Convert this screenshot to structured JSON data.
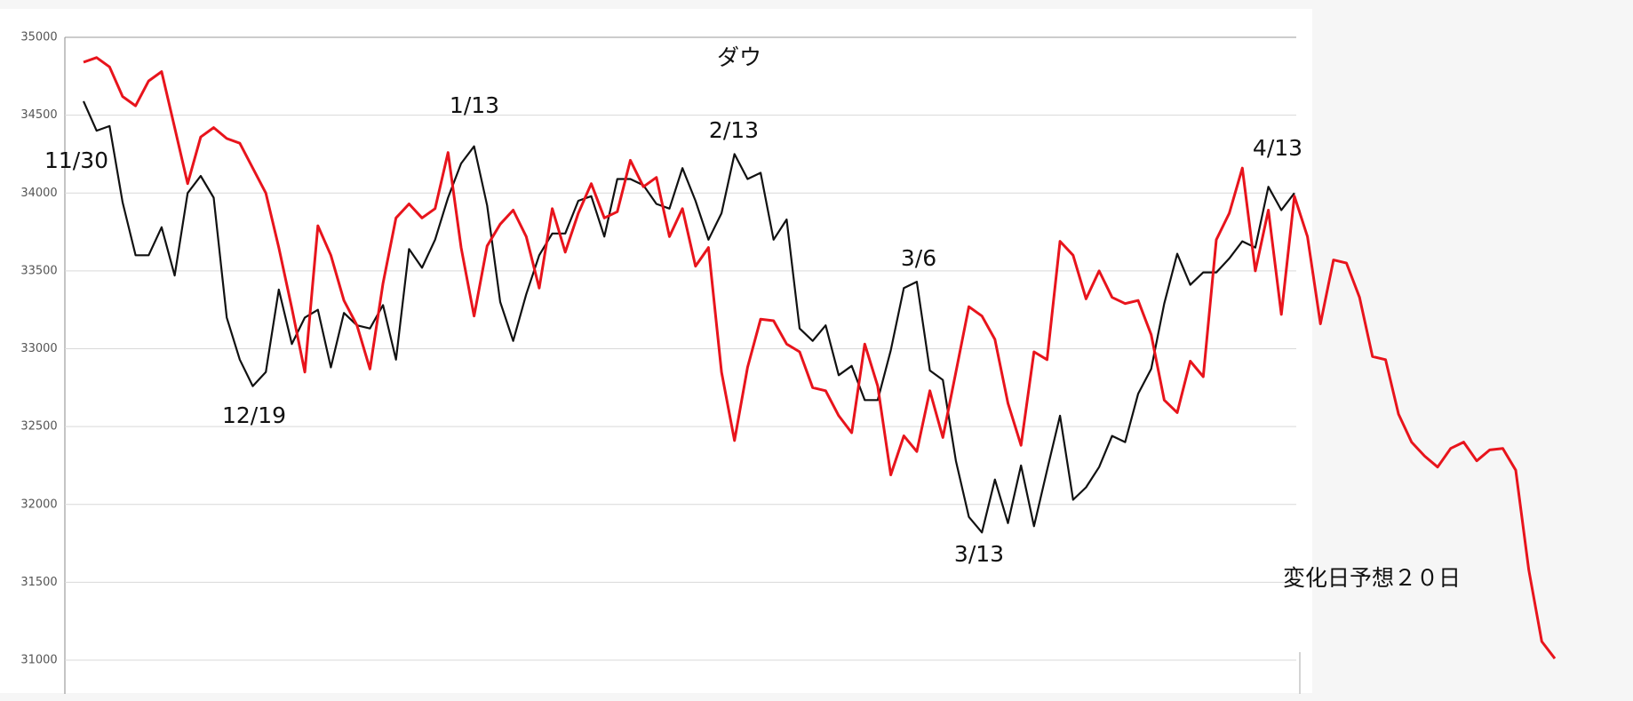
{
  "chart_data": {
    "type": "line",
    "title": "ダウ",
    "annotations": [
      "11/30",
      "12/19",
      "1/13",
      "2/13",
      "3/6",
      "3/13",
      "4/13",
      "変化日予想２０日"
    ],
    "ylim": [
      31000,
      35000
    ],
    "yticks": [
      31000,
      31500,
      32000,
      32500,
      33000,
      33500,
      34000,
      34500,
      35000
    ],
    "grid": true,
    "series": [
      {
        "color": "#111111",
        "values": [
          34590,
          34400,
          34430,
          33940,
          33600,
          33600,
          33780,
          33470,
          34000,
          34110,
          33970,
          33200,
          32930,
          32760,
          32850,
          33380,
          33030,
          33200,
          33250,
          32880,
          33230,
          33150,
          33130,
          33280,
          32930,
          33640,
          33520,
          33700,
          33970,
          34190,
          34300,
          33920,
          33300,
          33050,
          33350,
          33600,
          33740,
          33740,
          33950,
          33980,
          33720,
          34090,
          34090,
          34050,
          33930,
          33900,
          34160,
          33950,
          33700,
          33870,
          34250,
          34090,
          34130,
          33700,
          33830,
          33130,
          33050,
          33150,
          32830,
          32890,
          32670,
          32670,
          32990,
          33390,
          33430,
          32860,
          32800,
          32280,
          31920,
          31820,
          32160,
          31880,
          32250,
          31860,
          32220,
          32570,
          32030,
          32110,
          32240,
          32440,
          32400,
          32710,
          32870,
          33290,
          33610,
          33410,
          33490,
          33490,
          33580,
          33690,
          33650,
          34040,
          33890,
          34000,
          null,
          null,
          null,
          null,
          null,
          null,
          null,
          null,
          null,
          null,
          null,
          null,
          null,
          null,
          null,
          null,
          null,
          null,
          null,
          null
        ]
      },
      {
        "color": "#e8141c",
        "values": [
          34840,
          34870,
          34810,
          34620,
          34560,
          34720,
          34780,
          34420,
          34060,
          34360,
          34420,
          34350,
          34320,
          34160,
          34000,
          33650,
          33260,
          32850,
          33790,
          33600,
          33310,
          33150,
          32870,
          33420,
          33840,
          33930,
          33840,
          33900,
          34260,
          33650,
          33210,
          33660,
          33800,
          33890,
          33720,
          33390,
          33900,
          33620,
          33870,
          34060,
          33840,
          33880,
          34210,
          34040,
          34100,
          33720,
          33900,
          33530,
          33650,
          32850,
          32410,
          32880,
          33190,
          33180,
          33030,
          32980,
          32750,
          32730,
          32570,
          32460,
          33030,
          32760,
          32190,
          32440,
          32340,
          32730,
          32430,
          32850,
          33270,
          33210,
          33060,
          32650,
          32380,
          32980,
          32930,
          33690,
          33600,
          33320,
          33500,
          33330,
          33290,
          33310,
          33090,
          32670,
          32590,
          32920,
          32820,
          33700,
          33870,
          34160,
          33500,
          33890,
          33220,
          33980,
          33720,
          33160,
          33570,
          33550,
          33330,
          32950,
          32930,
          32580,
          32400,
          32310,
          32240,
          32360,
          32400,
          32280,
          32350,
          32360,
          32220,
          31580,
          31120,
          31010
        ]
      }
    ]
  }
}
